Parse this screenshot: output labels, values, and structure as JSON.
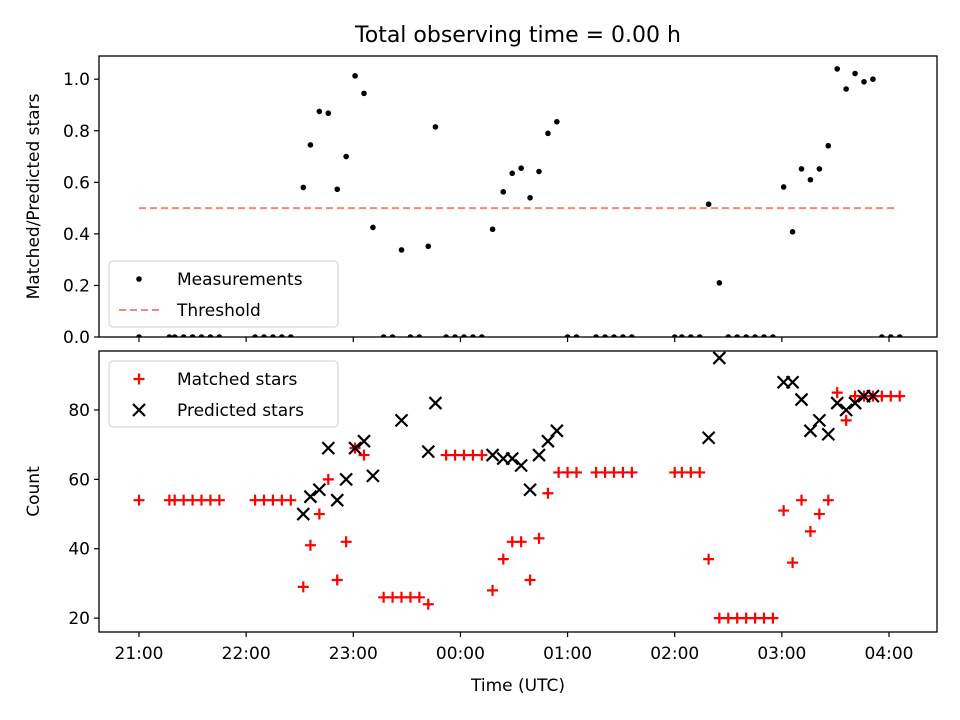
{
  "figure": {
    "title": "Total observing time = 0.00 h"
  },
  "chart_data": [
    {
      "type": "scatter",
      "ylabel": "Matched/Predicted stars",
      "xlabel": "",
      "x_ticks": [
        "21:00",
        "22:00",
        "23:00",
        "00:00",
        "01:00",
        "02:00",
        "03:00",
        "04:00"
      ],
      "x_tick_labels_visible": false,
      "ylim": [
        0.0,
        1.09
      ],
      "y_ticks": [
        "0.0",
        "0.2",
        "0.4",
        "0.6",
        "0.8",
        "1.0"
      ],
      "legend": {
        "position": "lower left",
        "entries": [
          "Measurements",
          "Threshold"
        ]
      },
      "threshold": {
        "name": "Threshold",
        "value": 0.5,
        "x_start": "21:00",
        "x_end": "04:03",
        "color": "#ff8080",
        "style": "dashed"
      },
      "series": [
        {
          "name": "Measurements",
          "marker": "dot",
          "color": "#000000",
          "points": [
            [
              "21:00",
              0.0
            ],
            [
              "21:17",
              0.0
            ],
            [
              "21:20",
              0.0
            ],
            [
              "21:25",
              0.0
            ],
            [
              "21:30",
              0.0
            ],
            [
              "21:35",
              0.0
            ],
            [
              "21:40",
              0.0
            ],
            [
              "21:45",
              0.0
            ],
            [
              "22:05",
              0.0
            ],
            [
              "22:10",
              0.0
            ],
            [
              "22:15",
              0.0
            ],
            [
              "22:20",
              0.0
            ],
            [
              "22:25",
              0.0
            ],
            [
              "22:32",
              0.58
            ],
            [
              "22:36",
              0.745
            ],
            [
              "22:41",
              0.875
            ],
            [
              "22:46",
              0.868
            ],
            [
              "22:51",
              0.573
            ],
            [
              "22:56",
              0.7
            ],
            [
              "23:01",
              1.013
            ],
            [
              "23:06",
              0.945
            ],
            [
              "23:11",
              0.425
            ],
            [
              "23:17",
              0.0
            ],
            [
              "23:22",
              0.0
            ],
            [
              "23:27",
              0.338
            ],
            [
              "23:32",
              0.0
            ],
            [
              "23:37",
              0.0
            ],
            [
              "23:42",
              0.352
            ],
            [
              "23:46",
              0.815
            ],
            [
              "23:52",
              0.0
            ],
            [
              "23:57",
              0.0
            ],
            [
              "00:02",
              0.0
            ],
            [
              "00:07",
              0.0
            ],
            [
              "00:12",
              0.0
            ],
            [
              "00:18",
              0.418
            ],
            [
              "00:24",
              0.563
            ],
            [
              "00:29",
              0.635
            ],
            [
              "00:34",
              0.655
            ],
            [
              "00:39",
              0.54
            ],
            [
              "00:44",
              0.642
            ],
            [
              "00:49",
              0.79
            ],
            [
              "00:54",
              0.835
            ],
            [
              "01:00",
              0.0
            ],
            [
              "01:05",
              0.0
            ],
            [
              "01:16",
              0.0
            ],
            [
              "01:21",
              0.0
            ],
            [
              "01:26",
              0.0
            ],
            [
              "01:31",
              0.0
            ],
            [
              "01:36",
              0.0
            ],
            [
              "02:00",
              0.0
            ],
            [
              "02:04",
              0.0
            ],
            [
              "02:09",
              0.0
            ],
            [
              "02:14",
              0.0
            ],
            [
              "02:19",
              0.515
            ],
            [
              "02:25",
              0.21
            ],
            [
              "02:30",
              0.0
            ],
            [
              "02:35",
              0.0
            ],
            [
              "02:40",
              0.0
            ],
            [
              "02:45",
              0.0
            ],
            [
              "02:50",
              0.0
            ],
            [
              "02:55",
              0.0
            ],
            [
              "03:01",
              0.582
            ],
            [
              "03:06",
              0.408
            ],
            [
              "03:11",
              0.652
            ],
            [
              "03:16",
              0.61
            ],
            [
              "03:21",
              0.652
            ],
            [
              "03:26",
              0.742
            ],
            [
              "03:31",
              1.04
            ],
            [
              "03:36",
              0.962
            ],
            [
              "03:41",
              1.022
            ],
            [
              "03:46",
              0.99
            ],
            [
              "03:51",
              1.0
            ],
            [
              "03:56",
              0.0
            ],
            [
              "04:01",
              0.0
            ],
            [
              "04:06",
              0.0
            ]
          ]
        }
      ]
    },
    {
      "type": "scatter",
      "ylabel": "Count",
      "xlabel": "Time (UTC)",
      "x_ticks": [
        "21:00",
        "22:00",
        "23:00",
        "00:00",
        "01:00",
        "02:00",
        "03:00",
        "04:00"
      ],
      "x_tick_labels_visible": true,
      "ylim": [
        16,
        97
      ],
      "y_ticks": [
        "20",
        "40",
        "60",
        "80"
      ],
      "legend": {
        "position": "upper left",
        "entries": [
          "Matched stars",
          "Predicted stars"
        ]
      },
      "series": [
        {
          "name": "Matched stars",
          "marker": "plus",
          "color": "#ff0000",
          "points": [
            [
              "21:00",
              54
            ],
            [
              "21:17",
              54
            ],
            [
              "21:20",
              54
            ],
            [
              "21:25",
              54
            ],
            [
              "21:30",
              54
            ],
            [
              "21:35",
              54
            ],
            [
              "21:40",
              54
            ],
            [
              "21:45",
              54
            ],
            [
              "22:05",
              54
            ],
            [
              "22:10",
              54
            ],
            [
              "22:15",
              54
            ],
            [
              "22:20",
              54
            ],
            [
              "22:25",
              54
            ],
            [
              "22:32",
              29
            ],
            [
              "22:36",
              41
            ],
            [
              "22:41",
              50
            ],
            [
              "22:46",
              60
            ],
            [
              "22:51",
              31
            ],
            [
              "22:56",
              42
            ],
            [
              "23:01",
              69
            ],
            [
              "23:06",
              67
            ],
            [
              "23:17",
              26
            ],
            [
              "23:22",
              26
            ],
            [
              "23:27",
              26
            ],
            [
              "23:32",
              26
            ],
            [
              "23:37",
              26
            ],
            [
              "23:42",
              24
            ],
            [
              "23:52",
              67
            ],
            [
              "23:57",
              67
            ],
            [
              "00:02",
              67
            ],
            [
              "00:07",
              67
            ],
            [
              "00:12",
              67
            ],
            [
              "00:18",
              28
            ],
            [
              "00:24",
              37
            ],
            [
              "00:29",
              42
            ],
            [
              "00:34",
              42
            ],
            [
              "00:39",
              31
            ],
            [
              "00:44",
              43
            ],
            [
              "00:49",
              56
            ],
            [
              "00:55",
              62
            ],
            [
              "01:00",
              62
            ],
            [
              "01:05",
              62
            ],
            [
              "01:16",
              62
            ],
            [
              "01:21",
              62
            ],
            [
              "01:26",
              62
            ],
            [
              "01:31",
              62
            ],
            [
              "01:36",
              62
            ],
            [
              "02:00",
              62
            ],
            [
              "02:04",
              62
            ],
            [
              "02:09",
              62
            ],
            [
              "02:14",
              62
            ],
            [
              "02:19",
              37
            ],
            [
              "02:25",
              20
            ],
            [
              "02:30",
              20
            ],
            [
              "02:35",
              20
            ],
            [
              "02:40",
              20
            ],
            [
              "02:45",
              20
            ],
            [
              "02:50",
              20
            ],
            [
              "02:55",
              20
            ],
            [
              "03:01",
              51
            ],
            [
              "03:06",
              36
            ],
            [
              "03:11",
              54
            ],
            [
              "03:16",
              45
            ],
            [
              "03:21",
              50
            ],
            [
              "03:26",
              54
            ],
            [
              "03:31",
              85
            ],
            [
              "03:36",
              77
            ],
            [
              "03:41",
              84
            ],
            [
              "03:46",
              84
            ],
            [
              "03:51",
              84
            ],
            [
              "03:56",
              84
            ],
            [
              "04:01",
              84
            ],
            [
              "04:06",
              84
            ]
          ]
        },
        {
          "name": "Predicted stars",
          "marker": "x",
          "color": "#000000",
          "points": [
            [
              "22:32",
              50
            ],
            [
              "22:36",
              55
            ],
            [
              "22:41",
              57
            ],
            [
              "22:46",
              69
            ],
            [
              "22:51",
              54
            ],
            [
              "22:56",
              60
            ],
            [
              "23:01",
              69
            ],
            [
              "23:06",
              71
            ],
            [
              "23:11",
              61
            ],
            [
              "23:27",
              77
            ],
            [
              "23:42",
              68
            ],
            [
              "23:46",
              82
            ],
            [
              "00:18",
              67
            ],
            [
              "00:24",
              66
            ],
            [
              "00:29",
              66
            ],
            [
              "00:34",
              64
            ],
            [
              "00:39",
              57
            ],
            [
              "00:44",
              67
            ],
            [
              "00:49",
              71
            ],
            [
              "00:54",
              74
            ],
            [
              "02:19",
              72
            ],
            [
              "02:25",
              95
            ],
            [
              "03:01",
              88
            ],
            [
              "03:06",
              88
            ],
            [
              "03:11",
              83
            ],
            [
              "03:16",
              74
            ],
            [
              "03:21",
              77
            ],
            [
              "03:26",
              73
            ],
            [
              "03:31",
              82
            ],
            [
              "03:36",
              80
            ],
            [
              "03:41",
              82
            ],
            [
              "03:46",
              84
            ],
            [
              "03:51",
              84
            ]
          ]
        }
      ]
    }
  ]
}
